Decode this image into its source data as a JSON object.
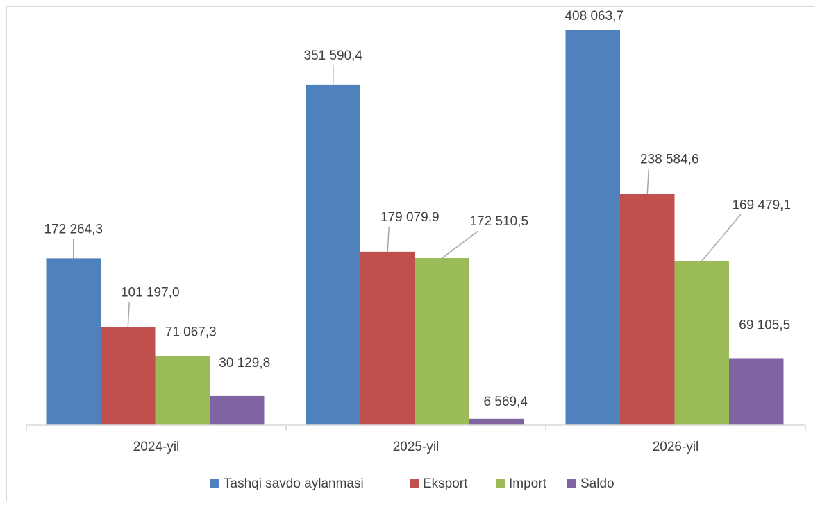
{
  "chart_data": {
    "type": "bar",
    "title": "",
    "xlabel": "",
    "ylabel": "",
    "categories": [
      "2024-yil",
      "2025-yil",
      "2026-yil"
    ],
    "series": [
      {
        "name": "Tashqi savdo aylanmasi",
        "color": "#4f81bd",
        "values": [
          172264.3,
          351590.4,
          408063.7
        ],
        "labels": [
          "172 264,3",
          "351 590,4",
          "408 063,7"
        ]
      },
      {
        "name": "Eksport",
        "color": "#c0504d",
        "values": [
          101197.0,
          179079.9,
          238584.6
        ],
        "labels": [
          "101 197,0",
          "179 079,9",
          "238 584,6"
        ]
      },
      {
        "name": "Import",
        "color": "#9bbb59",
        "values": [
          71067.3,
          172510.5,
          169479.1
        ],
        "labels": [
          "71 067,3",
          "172 510,5",
          "169 479,1"
        ]
      },
      {
        "name": "Saldo",
        "color": "#8064a2",
        "values": [
          30129.8,
          6569.4,
          69105.5
        ],
        "labels": [
          "30 129,8",
          "6 569,4",
          "69 105,5"
        ]
      }
    ],
    "legend_position": "bottom",
    "grid": false
  }
}
